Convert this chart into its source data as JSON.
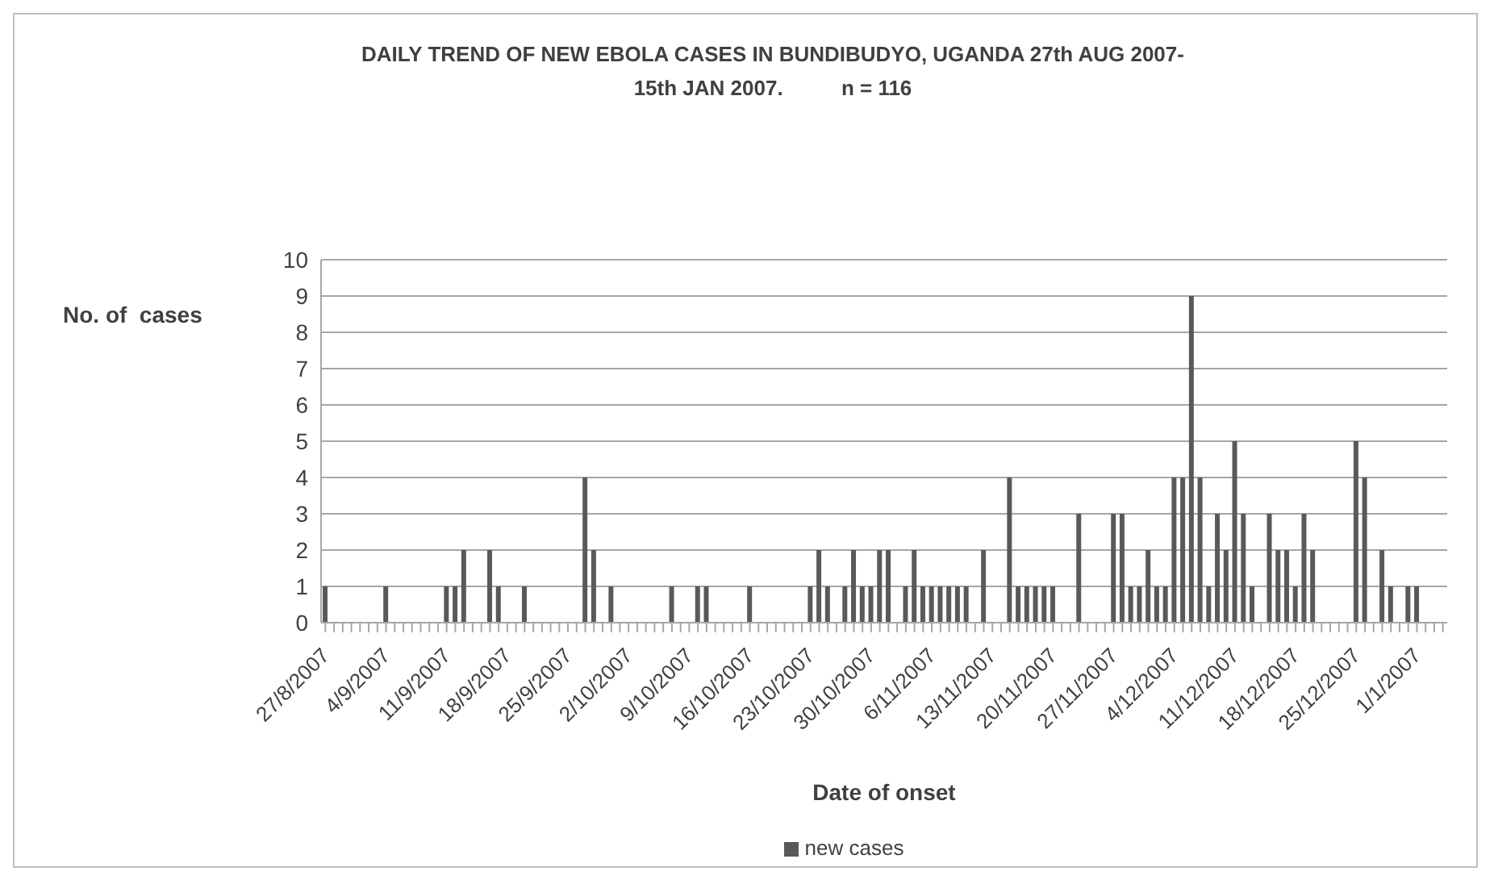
{
  "chart_data": {
    "type": "bar",
    "title": "DAILY TREND OF NEW EBOLA CASES IN BUNDIBUDYO, UGANDA 27th AUG 2007- 15th JAN 2007.          n = 116",
    "xlabel": "Date of onset",
    "ylabel": "No. of  cases",
    "categories": [
      "27/8/2007",
      null,
      null,
      null,
      null,
      null,
      null,
      "4/9/2007",
      null,
      null,
      null,
      null,
      null,
      null,
      "11/9/2007",
      null,
      null,
      null,
      null,
      null,
      null,
      "18/9/2007",
      null,
      null,
      null,
      null,
      null,
      null,
      "25/9/2007",
      null,
      null,
      null,
      null,
      null,
      null,
      "2/10/2007",
      null,
      null,
      null,
      null,
      null,
      null,
      "9/10/2007",
      null,
      null,
      null,
      null,
      null,
      null,
      "16/10/2007",
      null,
      null,
      null,
      null,
      null,
      null,
      "23/10/2007",
      null,
      null,
      null,
      null,
      null,
      null,
      "30/10/2007",
      null,
      null,
      null,
      null,
      null,
      null,
      "6/11/2007",
      null,
      null,
      null,
      null,
      null,
      null,
      "13/11/2007",
      null,
      null,
      null,
      null,
      null,
      null,
      "20/11/2007",
      null,
      null,
      null,
      null,
      null,
      null,
      "27/11/2007",
      null,
      null,
      null,
      null,
      null,
      null,
      "4/12/2007",
      null,
      null,
      null,
      null,
      null,
      null,
      "11/12/2007",
      null,
      null,
      null,
      null,
      null,
      null,
      "18/12/2007",
      null,
      null,
      null,
      null,
      null,
      null,
      "25/12/2007",
      null,
      null,
      null,
      null,
      null,
      null,
      "1/1/2007",
      null,
      null,
      null
    ],
    "series": [
      {
        "name": "new cases",
        "color": "#595959",
        "values": [
          1,
          0,
          0,
          0,
          0,
          0,
          0,
          1,
          0,
          0,
          0,
          0,
          0,
          0,
          1,
          1,
          2,
          0,
          0,
          2,
          1,
          0,
          0,
          1,
          0,
          0,
          0,
          0,
          0,
          0,
          4,
          2,
          0,
          1,
          0,
          0,
          0,
          0,
          0,
          0,
          1,
          0,
          0,
          1,
          1,
          0,
          0,
          0,
          0,
          1,
          0,
          0,
          0,
          0,
          0,
          0,
          1,
          2,
          1,
          0,
          1,
          2,
          1,
          1,
          2,
          2,
          0,
          1,
          2,
          1,
          1,
          1,
          1,
          1,
          1,
          0,
          2,
          0,
          0,
          4,
          1,
          1,
          1,
          1,
          1,
          0,
          0,
          3,
          0,
          0,
          0,
          3,
          3,
          1,
          1,
          2,
          1,
          1,
          4,
          4,
          9,
          4,
          1,
          3,
          2,
          5,
          3,
          1,
          0,
          3,
          2,
          2,
          1,
          3,
          2,
          0,
          0,
          0,
          0,
          5,
          4,
          0,
          2,
          1,
          0,
          1,
          1,
          0,
          0,
          0
        ]
      }
    ],
    "ylim": [
      0,
      10
    ],
    "yticks": [
      0,
      1,
      2,
      3,
      4,
      5,
      6,
      7,
      8,
      9,
      10
    ],
    "grid": "y",
    "legend": "bottom"
  }
}
